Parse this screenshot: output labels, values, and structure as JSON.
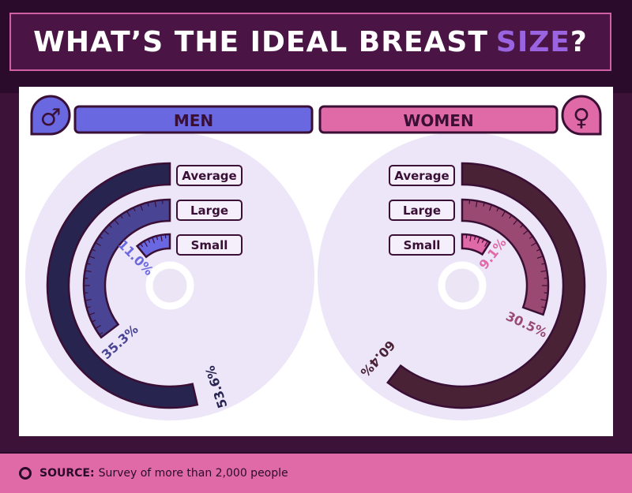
{
  "title": {
    "main": "WHAT’S THE IDEAL BREAST",
    "highlight": "SIZE",
    "end": "?"
  },
  "footer": {
    "label": "SOURCE:",
    "text": "Survey of more than 2,000 people"
  },
  "chart_data": [
    {
      "type": "radial-bar",
      "title": "MEN",
      "icon": "male-symbol-icon",
      "categories": [
        "Average",
        "Large",
        "Small"
      ],
      "values": [
        53.6,
        35.3,
        11.0
      ],
      "unit": "%",
      "colors": [
        "#272450",
        "#4a4494",
        "#6a68e0"
      ],
      "header_color": "#6a68e0"
    },
    {
      "type": "radial-bar",
      "title": "WOMEN",
      "icon": "female-symbol-icon",
      "categories": [
        "Average",
        "Large",
        "Small"
      ],
      "values": [
        60.4,
        30.5,
        9.1
      ],
      "unit": "%",
      "colors": [
        "#4a2236",
        "#9a4a72",
        "#e06aa8"
      ],
      "header_color": "#e06aa8"
    }
  ]
}
